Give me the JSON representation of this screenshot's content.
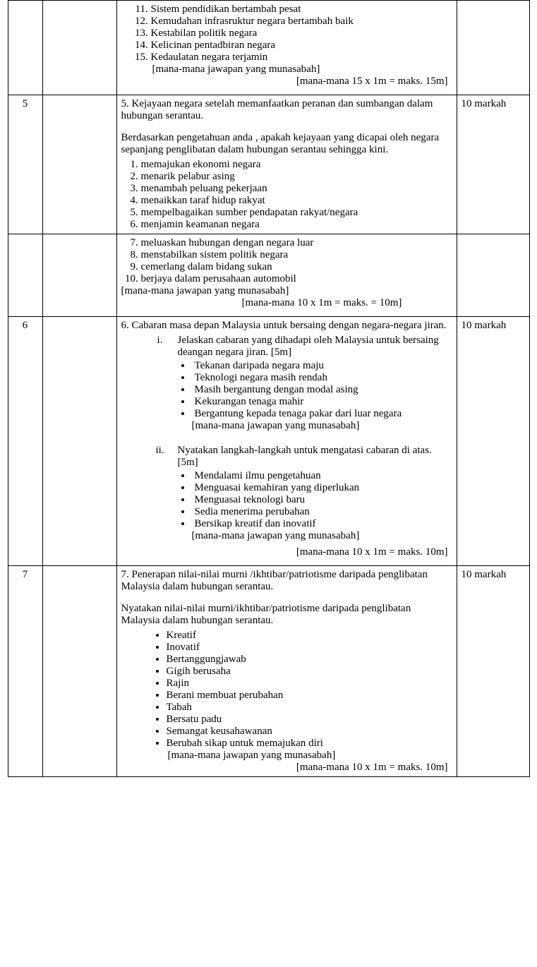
{
  "row_top": {
    "list_start": 11,
    "items": [
      "Sistem pendidikan bertambah pesat",
      "Kemudahan infrasruktur negara bertambah baik",
      "Kestabilan politik negara",
      "Kelicinan pentadbiran negara",
      "Kedaulatan negara terjamin"
    ],
    "note1": "[mana-mana jawapan yang munasabah]",
    "note2": "[mana-mana 15 x 1m = maks. 15m]"
  },
  "row5a": {
    "num": "5",
    "marks": "10 markah",
    "title": "5. Kejayaan negara setelah memanfaatkan peranan dan sumbangan  dalam hubungan serantau.",
    "sub": "Berdasarkan pengetahuan anda , apakah kejayaan yang dicapai oleh negara sepanjang penglibatan dalam hubungan serantau sehingga kini.",
    "list": [
      "memajukan ekonomi negara",
      "menarik pelabur asing",
      "menambah peluang pekerjaan",
      "menaikkan taraf hidup rakyat",
      "mempelbagaikan sumber pendapatan rakyat/negara",
      "menjamin keamanan negara"
    ]
  },
  "row5b": {
    "list_start": 7,
    "list": [
      "meluaskan hubungan dengan negara luar",
      "menstabilkan sistem politik negara",
      "cemerlang dalam bidang sukan",
      "berjaya dalam perusahaan automobil"
    ],
    "note1": "[mana-mana jawapan yang munasabah]",
    "note2": "[mana-mana 10 x 1m = maks. = 10m]"
  },
  "row6": {
    "num": "6",
    "marks": "10 markah",
    "title": "6. Cabaran masa depan Malaysia untuk bersaing  dengan negara-negara jiran.",
    "parts": [
      {
        "rn": "i.",
        "question": "Jelaskan cabaran yang dihadapi oleh Malaysia untuk bersaing  deangan negara jiran. [5m]",
        "bullets": [
          "Tekanan daripada negara maju",
          "Teknologi negara masih rendah",
          "Masih bergantung dengan modal asing",
          "Kekurangan tenaga mahir",
          "Bergantung kepada tenaga pakar dari luar negara"
        ],
        "note": "[mana-mana jawapan yang munasabah]"
      },
      {
        "rn": "ii.",
        "question": "Nyatakan langkah-langkah untuk mengatasi cabaran di atas. [5m]",
        "bullets": [
          "Mendalami  ilmu pengetahuan",
          "Menguasai kemahiran yang diperlukan",
          "Menguasai teknologi baru",
          "Sedia menerima perubahan",
          "Bersikap kreatif dan inovatif"
        ],
        "note": "[mana-mana jawapan yang munasabah]"
      }
    ],
    "final_note": "[mana-mana 10 x 1m = maks. 10m]"
  },
  "row7": {
    "num": "7",
    "marks": "10 markah",
    "title": "7. Penerapan nilai-nilai murni /ikhtibar/patriotisme daripada penglibatan Malaysia dalam hubungan serantau.",
    "sub": "Nyatakan nilai-nilai murni/ikhtibar/patriotisme daripada penglibatan Malaysia dalam hubungan serantau.",
    "bullets": [
      "Kreatif",
      "Inovatif",
      "Bertanggungjawab",
      "Gigih berusaha",
      "Rajin",
      "Berani membuat perubahan",
      "Tabah",
      "Bersatu padu",
      "Semangat keusahawanan",
      "Berubah sikap untuk memajukan diri"
    ],
    "note1": "[mana-mana jawapan yang munasabah]",
    "note2": "[mana-mana 10 x 1m = maks. 10m]"
  }
}
